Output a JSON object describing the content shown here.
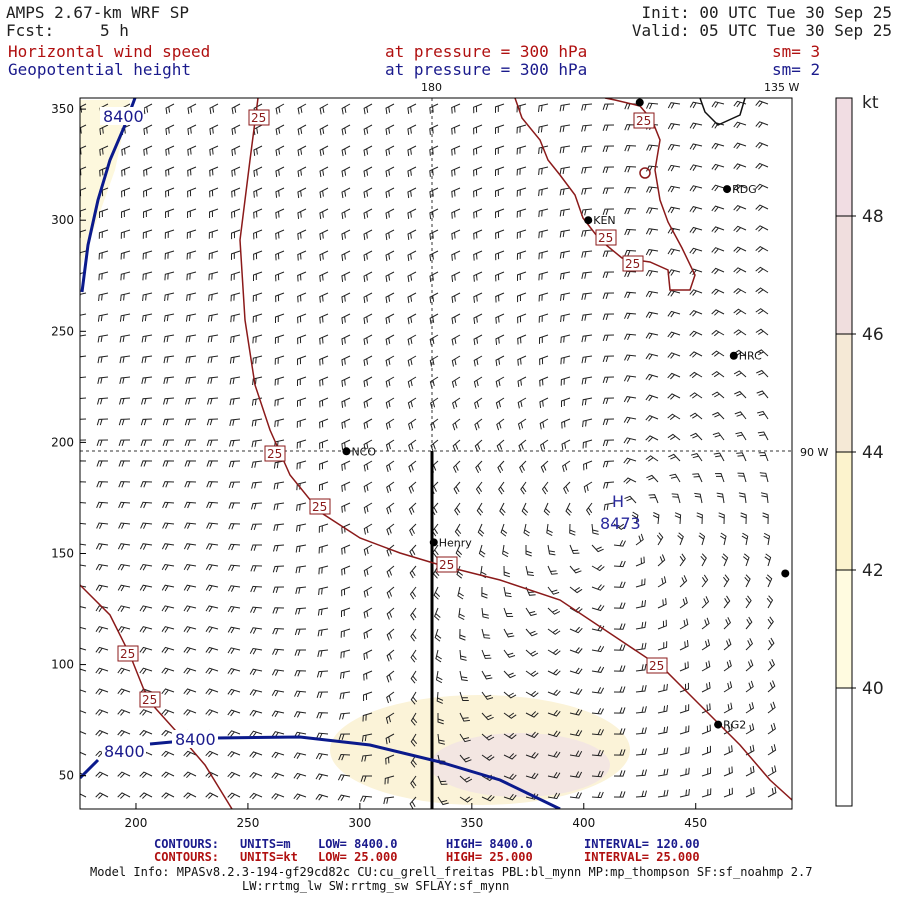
{
  "header": {
    "title": "AMPS 2.67-km WRF SP",
    "fcst_label": "Fcst:",
    "fcst_value": "5 h",
    "init": "Init: 00 UTC Tue 30 Sep 25",
    "valid": "Valid: 05 UTC Tue 30 Sep 25",
    "field1": "Horizontal wind speed",
    "field1_level": "at pressure =  300 hPa",
    "field1_sm": "sm= 3",
    "field2": "Geopotential height",
    "field2_level": "at pressure =  300 hPa",
    "field2_sm": "sm= 2"
  },
  "map": {
    "meridians": [
      {
        "label": "180",
        "x": 332
      },
      {
        "label": "135 W",
        "x": 471
      },
      {
        "label": "90 W",
        "y": 196
      }
    ],
    "xaxis": {
      "min": 175,
      "max": 493,
      "ticks": [
        200,
        250,
        300,
        350,
        400,
        450
      ]
    },
    "yaxis": {
      "min": 35,
      "max": 355,
      "ticks": [
        50,
        100,
        150,
        200,
        250,
        300,
        350
      ]
    },
    "stations": [
      {
        "label": "NCO",
        "x": 294,
        "y": 196
      },
      {
        "label": "Henry",
        "x": 333,
        "y": 155
      },
      {
        "label": "KEN",
        "x": 402,
        "y": 300
      },
      {
        "label": "RDG",
        "x": 464,
        "y": 314
      },
      {
        "label": "HRC",
        "x": 467,
        "y": 239
      },
      {
        "label": "RG2",
        "x": 460,
        "y": 73
      },
      {
        "label": "",
        "x": 425,
        "y": 353
      },
      {
        "label": "",
        "x": 490,
        "y": 141
      }
    ],
    "height_labels": [
      "8400",
      "8400",
      "8400"
    ],
    "high_label": "H",
    "high_value": "8473",
    "speed_labels": [
      "25",
      "25",
      "25",
      "25",
      "25",
      "25",
      "25",
      "25",
      "25"
    ]
  },
  "colorbar": {
    "unit": "kt",
    "ticks": [
      "40",
      "42",
      "44",
      "46",
      "48"
    ],
    "colors": [
      "#ffffff",
      "#fffbe0",
      "#fcf3cd",
      "#f5e9d6",
      "#f0dede",
      "#f1dde3"
    ]
  },
  "footer": {
    "contours1_label": "CONTOURS:",
    "contours1_units": "UNITS=m",
    "contours1_low": "LOW=  8400.0",
    "contours1_high": "HIGH=  8400.0",
    "contours1_interval": "INTERVAL=    120.00",
    "contours2_label": "CONTOURS:",
    "contours2_units": "UNITS=kt",
    "contours2_low": "LOW=  25.000",
    "contours2_high": "HIGH=  25.000",
    "contours2_interval": "INTERVAL=    25.000",
    "model_info": "Model Info: MPASv8.2.3-194-gf29cd82c CU:cu_grell_freitas PBL:bl_mynn MP:mp_thompson SF:sf_noahmp 2.7",
    "model_info2": "LW:rrtmg_lw SW:rrtmg_sw SFLAY:sf_mynn"
  }
}
